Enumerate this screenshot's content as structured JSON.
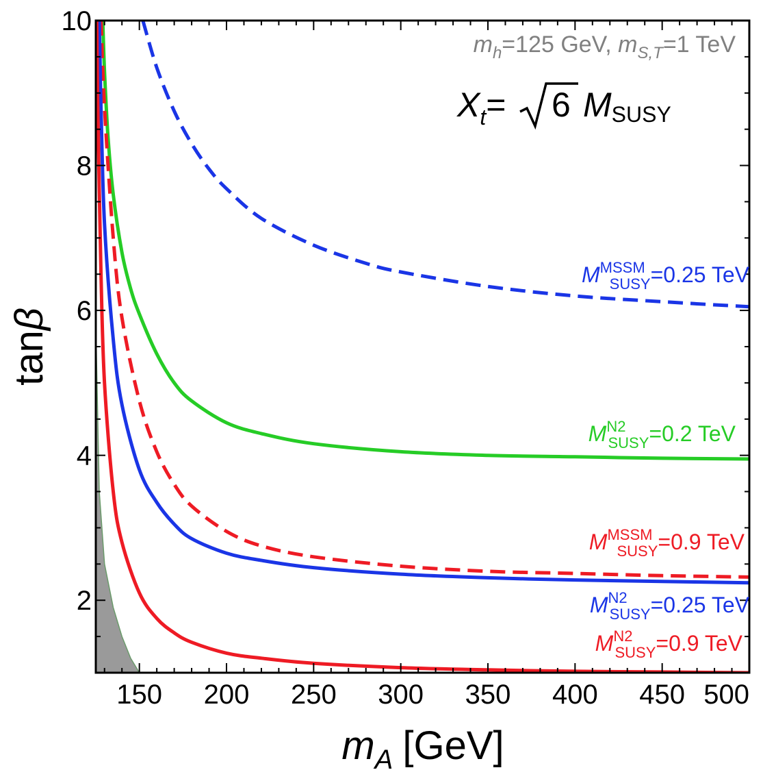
{
  "chart_data": {
    "type": "line",
    "xlabel_main": "m",
    "xlabel_sub": "A",
    "xlabel_unit": "[GeV]",
    "ylabel_main": "tan",
    "ylabel_greek": "β",
    "xlim": [
      125,
      500
    ],
    "ylim": [
      1,
      10
    ],
    "x_ticks": [
      150,
      200,
      250,
      300,
      350,
      400,
      450,
      500
    ],
    "y_ticks": [
      2,
      4,
      6,
      8,
      10
    ],
    "annotation_params": {
      "m1": "m",
      "m1_sub": "h",
      "m1_val": "=125 GeV, ",
      "m2": "m",
      "m2_sub": "S,T",
      "m2_val": "=1 TeV",
      "color": "#808080"
    },
    "annotation_xt": {
      "x": "X",
      "x_sub": "t",
      "eq": "=",
      "sqrt_arg": "6",
      "m": "M",
      "m_sub": "SUSY"
    },
    "excluded_region": {
      "color": "#9a9a9a",
      "x": [
        125,
        127,
        130,
        135,
        140,
        145,
        150
      ],
      "y_upper": [
        5.8,
        3.5,
        2.5,
        1.9,
        1.5,
        1.2,
        1.0
      ]
    },
    "series": [
      {
        "name": "MSSM 0.25 TeV",
        "color": "#1a35e6",
        "dashed": true,
        "label_sup": "MSSM",
        "label_sub": "SUSY",
        "label_val": "=0.25 TeV",
        "x": [
          152,
          160,
          170,
          180,
          190,
          200,
          220,
          250,
          280,
          300,
          350,
          400,
          450,
          500
        ],
        "y": [
          10.0,
          9.35,
          8.75,
          8.3,
          7.95,
          7.68,
          7.27,
          6.9,
          6.65,
          6.53,
          6.33,
          6.2,
          6.12,
          6.05
        ]
      },
      {
        "name": "N2 0.2 TeV",
        "color": "#26cc26",
        "dashed": false,
        "label_sup": "N2",
        "label_sub": "SUSY",
        "label_val": "=0.2 TeV",
        "x": [
          129,
          130,
          132,
          135,
          140,
          145,
          150,
          160,
          170,
          180,
          200,
          220,
          250,
          300,
          350,
          400,
          450,
          500
        ],
        "y": [
          10.0,
          9.3,
          8.4,
          7.6,
          6.8,
          6.3,
          5.95,
          5.4,
          5.0,
          4.75,
          4.45,
          4.3,
          4.16,
          4.05,
          4.0,
          3.98,
          3.96,
          3.95
        ]
      },
      {
        "name": "MSSM 0.9 TeV",
        "color": "#ee1b24",
        "dashed": true,
        "label_sup": "MSSM",
        "label_sub": "SUSY",
        "label_val": "=0.9 TeV",
        "x": [
          128,
          130,
          135,
          140,
          150,
          160,
          170,
          180,
          200,
          220,
          250,
          300,
          350,
          400,
          450,
          500
        ],
        "y": [
          10.0,
          8.8,
          7.0,
          5.9,
          4.75,
          4.05,
          3.6,
          3.3,
          2.95,
          2.75,
          2.6,
          2.47,
          2.4,
          2.37,
          2.34,
          2.32
        ]
      },
      {
        "name": "N2 0.25 TeV",
        "color": "#1a35e6",
        "dashed": false,
        "label_sup": "N2",
        "label_sub": "SUSY",
        "label_val": "=0.25 TeV",
        "x": [
          127,
          128,
          130,
          135,
          140,
          150,
          160,
          170,
          180,
          200,
          220,
          250,
          300,
          350,
          400,
          450,
          500
        ],
        "y": [
          10.0,
          8.8,
          7.2,
          5.6,
          4.7,
          3.8,
          3.35,
          3.05,
          2.85,
          2.65,
          2.55,
          2.45,
          2.36,
          2.31,
          2.28,
          2.26,
          2.24
        ]
      },
      {
        "name": "N2 0.9 TeV",
        "color": "#ee1b24",
        "dashed": false,
        "label_sup": "N2",
        "label_sub": "SUSY",
        "label_val": "=0.9 TeV",
        "x": [
          125.5,
          126,
          128,
          130,
          135,
          140,
          150,
          160,
          170,
          180,
          200,
          220,
          250,
          300,
          350,
          400,
          450,
          500
        ],
        "y": [
          10.0,
          9.0,
          6.5,
          5.0,
          3.5,
          2.8,
          2.1,
          1.75,
          1.55,
          1.42,
          1.27,
          1.2,
          1.13,
          1.07,
          1.04,
          1.02,
          1.01,
          1.0
        ]
      }
    ]
  }
}
